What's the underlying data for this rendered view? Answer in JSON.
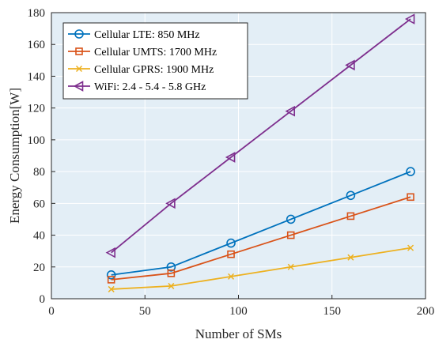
{
  "chart_data": {
    "type": "line",
    "xlabel": "Number of SMs",
    "ylabel": "Energy Consumption[W]",
    "xlim": [
      0,
      200
    ],
    "ylim": [
      0,
      180
    ],
    "xticks": [
      0,
      50,
      100,
      150,
      200
    ],
    "yticks": [
      0,
      20,
      40,
      60,
      80,
      100,
      120,
      140,
      160,
      180
    ],
    "grid": true,
    "legend_position": "top-left",
    "x": [
      32,
      64,
      96,
      128,
      160,
      192
    ],
    "series": [
      {
        "name": "Cellular LTE: 850 MHz",
        "values": [
          15,
          20,
          35,
          50,
          65,
          80
        ],
        "color": "#0072BD",
        "marker": "circle"
      },
      {
        "name": "Cellular UMTS: 1700 MHz",
        "values": [
          12,
          16,
          28,
          40,
          52,
          64
        ],
        "color": "#D95319",
        "marker": "square"
      },
      {
        "name": "Cellular GPRS: 1900 MHz",
        "values": [
          6,
          8,
          14,
          20,
          26,
          32
        ],
        "color": "#EDB120",
        "marker": "x"
      },
      {
        "name": "WiFi: 2.4 - 5.4 - 5.8 GHz",
        "values": [
          29,
          60,
          89,
          118,
          147,
          176
        ],
        "color": "#7E2F8E",
        "marker": "triangle-left"
      }
    ],
    "plot_background": "#E3EEF6"
  }
}
